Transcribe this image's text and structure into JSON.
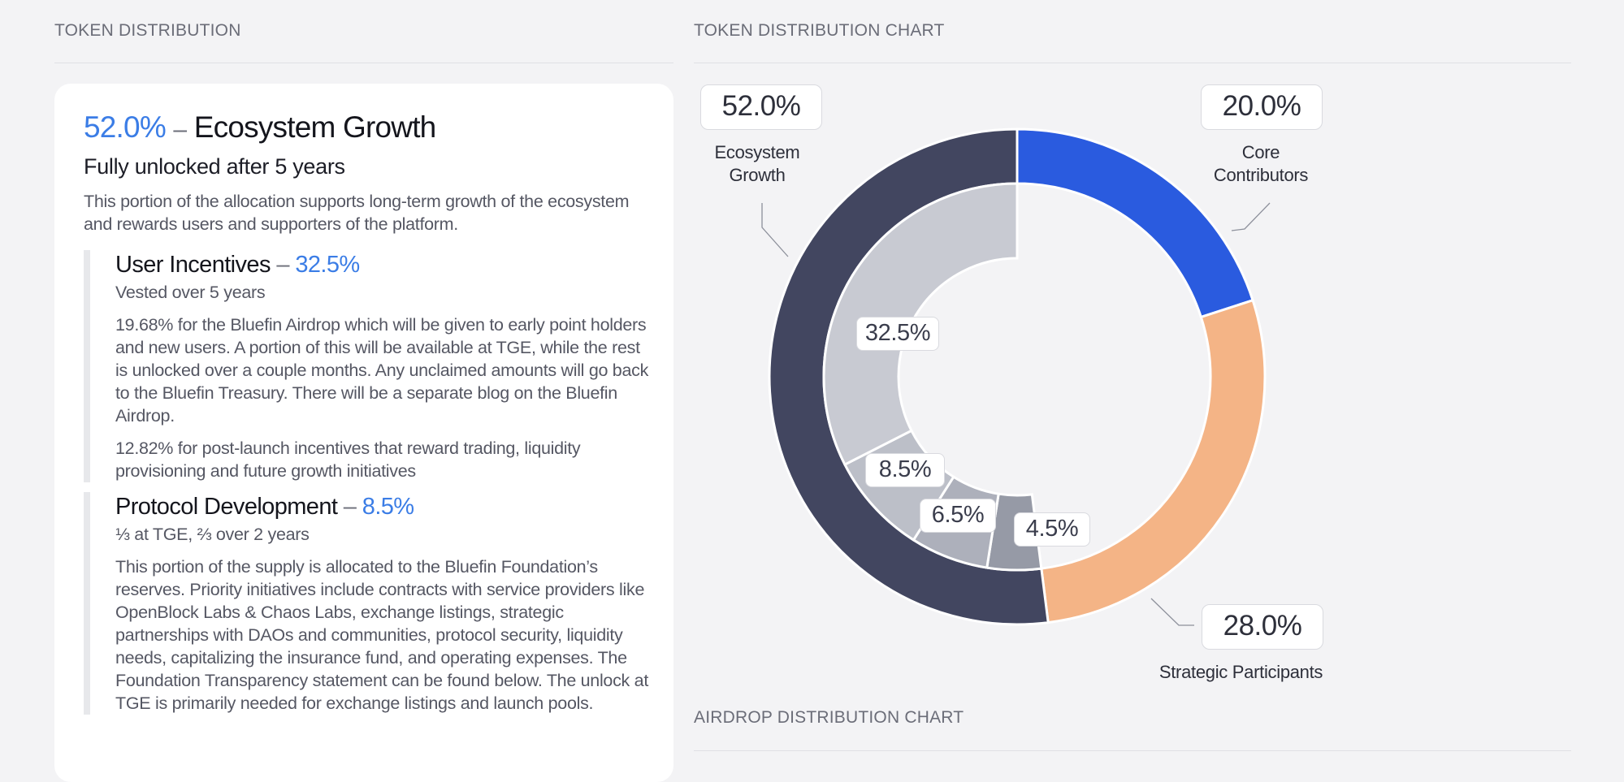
{
  "left_section": {
    "title": "TOKEN DISTRIBUTION"
  },
  "right_section": {
    "title": "TOKEN DISTRIBUTION CHART"
  },
  "airdrop_section": {
    "title": "AIRDROP DISTRIBUTION CHART"
  },
  "card": {
    "percent": "52.0%",
    "dash": "–",
    "name": "Ecosystem Growth",
    "unlock": "Fully unlocked after 5 years",
    "description": "This portion of the allocation supports long-term growth of the ecosystem and rewards users and supporters of the platform.",
    "subsections": [
      {
        "title": "User Incentives",
        "dash": "–",
        "percent": "32.5%",
        "vesting": "Vested over 5 years",
        "paragraphs": [
          "19.68% for the Bluefin Airdrop which will be given to early point holders and new users. A portion of this will be available at TGE, while the rest is unlocked over a couple months. Any unclaimed amounts will go back to the Bluefin Treasury. There will be a separate blog on the Bluefin Airdrop.",
          "12.82% for post-launch incentives that reward trading, liquidity provisioning and future growth initiatives"
        ]
      },
      {
        "title": "Protocol Development",
        "dash": "–",
        "percent": "8.5%",
        "vesting": "⅓ at TGE, ⅔ over 2 years",
        "paragraphs": [
          "This portion of the supply is allocated to the Bluefin Foundation’s reserves. Priority initiatives include contracts with service providers like OpenBlock Labs & Chaos Labs, exchange listings, strategic partnerships with DAOs and communities, protocol security, liquidity needs, capitalizing the insurance fund, and operating expenses. The Foundation Transparency statement can be found below. The unlock at TGE is primarily needed for exchange listings and launch pools."
        ]
      }
    ]
  },
  "chart_data": {
    "type": "pie",
    "outer_ring": {
      "slices": [
        {
          "label": "Core Contributors",
          "value": 20.0,
          "display": "20.0%",
          "color": "#2a5bdf"
        },
        {
          "label": "Strategic Participants",
          "value": 28.0,
          "display": "28.0%",
          "color": "#f4b486"
        },
        {
          "label": "Ecosystem Growth",
          "value": 52.0,
          "display": "52.0%",
          "color": "#424660"
        }
      ]
    },
    "inner_ring": {
      "slices": [
        {
          "value": 4.5,
          "display": "4.5%",
          "color": "#969aa6"
        },
        {
          "value": 6.5,
          "display": "6.5%",
          "color": "#adb0bb"
        },
        {
          "value": 8.5,
          "display": "8.5%",
          "color": "#bcbfc8"
        },
        {
          "value": 32.5,
          "display": "32.5%",
          "color": "#c8cad2"
        }
      ]
    },
    "callouts": {
      "ecosystem": {
        "value": "52.0%",
        "label_line1": "Ecosystem",
        "label_line2": "Growth"
      },
      "core": {
        "value": "20.0%",
        "label_line1": "Core",
        "label_line2": "Contributors"
      },
      "strategic": {
        "value": "28.0%",
        "label": "Strategic Participants"
      }
    }
  }
}
